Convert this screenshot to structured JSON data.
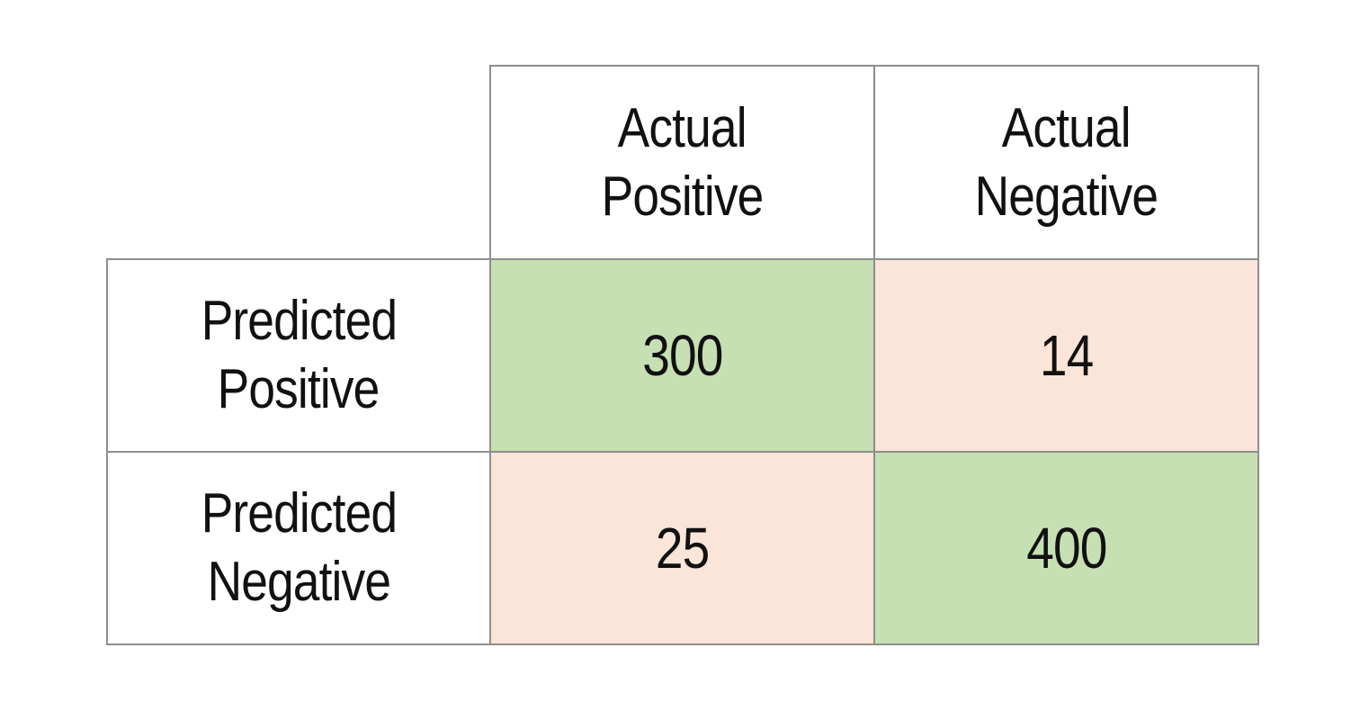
{
  "chart_data": {
    "type": "table",
    "column_headers": [
      {
        "line1": "Actual",
        "line2": "Positive"
      },
      {
        "line1": "Actual",
        "line2": "Negative"
      }
    ],
    "row_headers": [
      {
        "line1": "Predicted",
        "line2": "Positive"
      },
      {
        "line1": "Predicted",
        "line2": "Negative"
      }
    ],
    "values": [
      [
        "300",
        "14"
      ],
      [
        "25",
        "400"
      ]
    ],
    "colors": {
      "correct": "#c6e0b4",
      "error": "#fbe4d8",
      "border": "#8e8e8e"
    }
  }
}
